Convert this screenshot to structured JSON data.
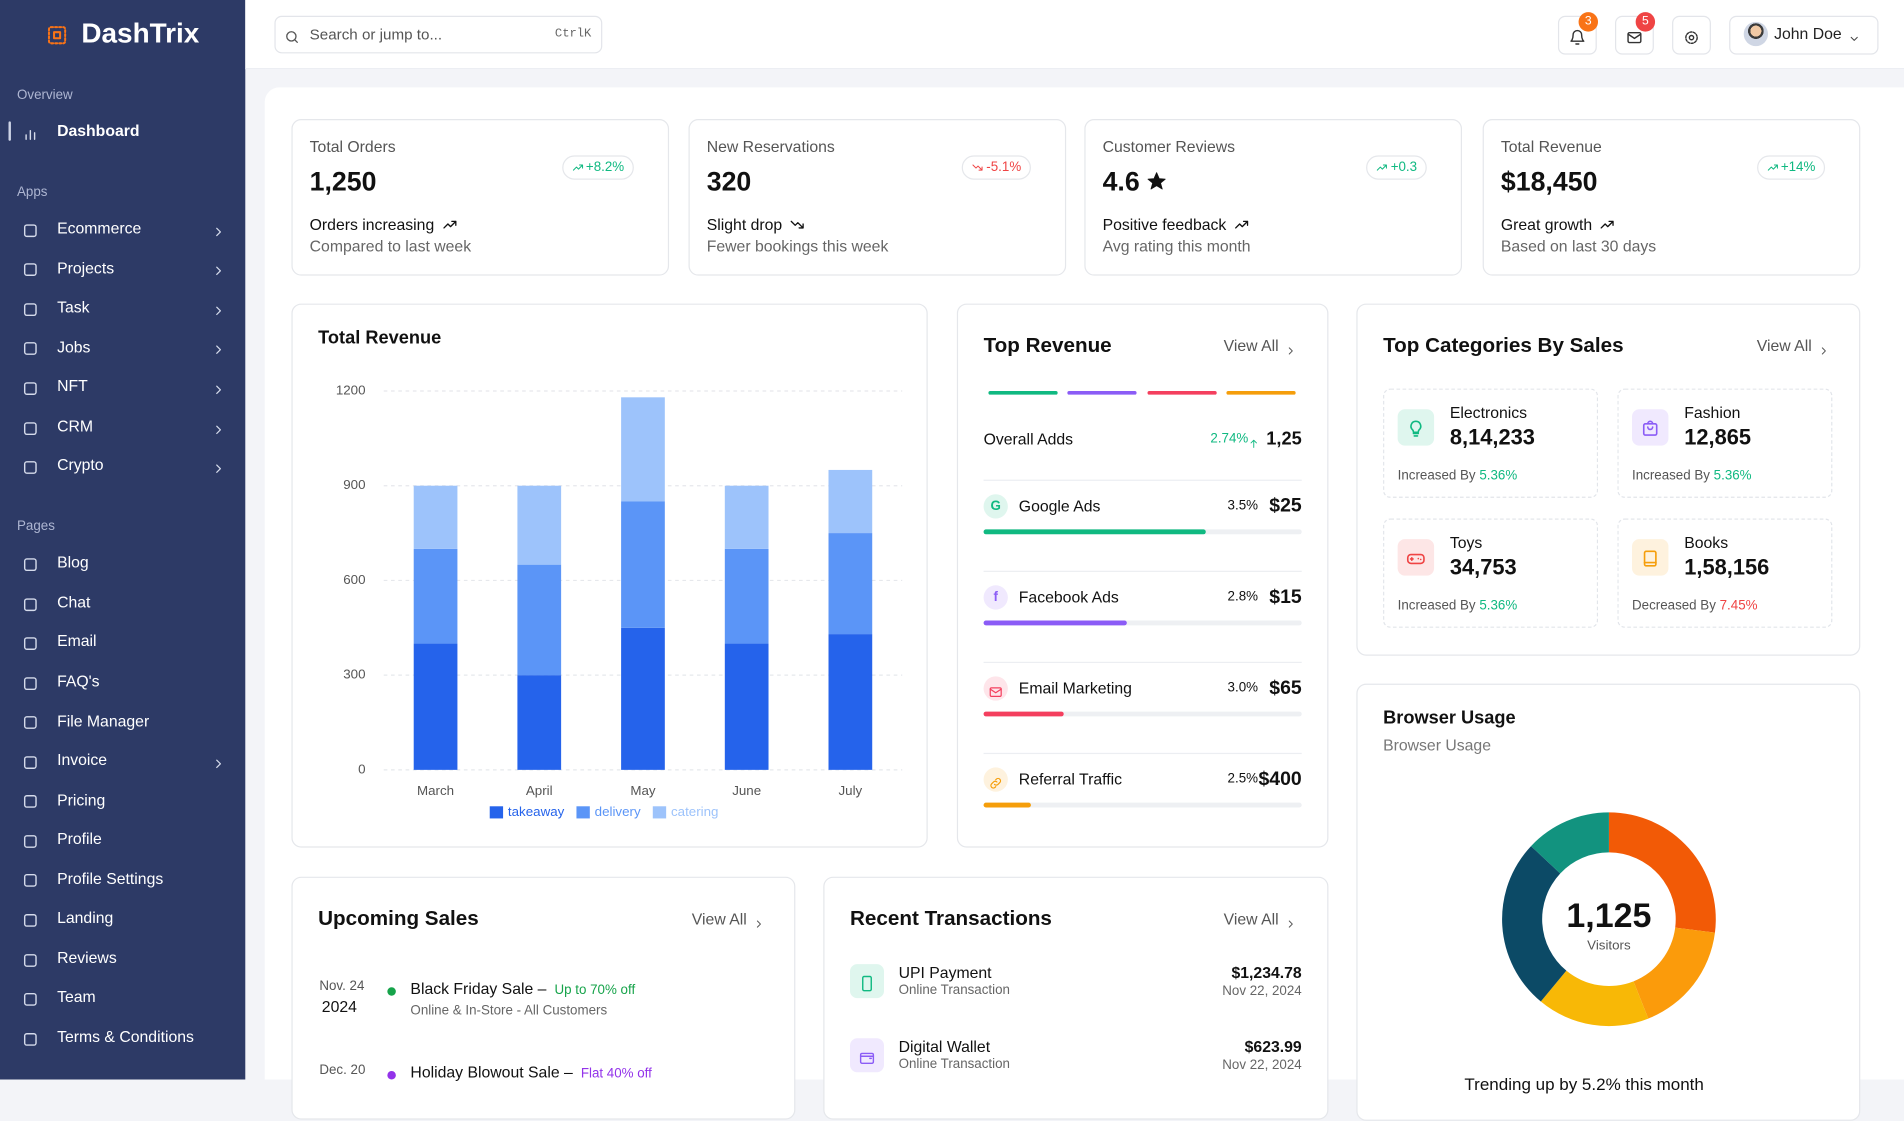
{
  "sidebar": {
    "brand": "DashTrix",
    "sections": [
      {
        "title": "Overview",
        "items": [
          {
            "label": "Dashboard",
            "active": true,
            "submenu": false
          }
        ]
      },
      {
        "title": "Apps",
        "items": [
          {
            "label": "Ecommerce",
            "submenu": true
          },
          {
            "label": "Projects",
            "submenu": true
          },
          {
            "label": "Task",
            "submenu": true
          },
          {
            "label": "Jobs",
            "submenu": true
          },
          {
            "label": "NFT",
            "submenu": true
          },
          {
            "label": "CRM",
            "submenu": true
          },
          {
            "label": "Crypto",
            "submenu": true
          }
        ]
      },
      {
        "title": "Pages",
        "items": [
          {
            "label": "Blog",
            "submenu": false
          },
          {
            "label": "Chat",
            "submenu": false
          },
          {
            "label": "Email",
            "submenu": false
          },
          {
            "label": "FAQ's",
            "submenu": false
          },
          {
            "label": "File Manager",
            "submenu": false
          },
          {
            "label": "Invoice",
            "submenu": true
          },
          {
            "label": "Pricing",
            "submenu": false
          },
          {
            "label": "Profile",
            "submenu": false
          },
          {
            "label": "Profile Settings",
            "submenu": false
          },
          {
            "label": "Landing",
            "submenu": false
          },
          {
            "label": "Reviews",
            "submenu": false
          },
          {
            "label": "Team",
            "submenu": false
          },
          {
            "label": "Terms & Conditions",
            "submenu": false
          }
        ]
      }
    ]
  },
  "topbar": {
    "search_placeholder": "Search or jump to...",
    "shortcut": "CtrlK",
    "notifications": 3,
    "messages": 5,
    "user": "John Doe"
  },
  "stats": [
    {
      "label": "Total Orders",
      "value": "1,250",
      "change": "+8.2%",
      "trend": "up",
      "note": "Orders increasing",
      "sub": "Compared to last week"
    },
    {
      "label": "New Reservations",
      "value": "320",
      "change": "-5.1%",
      "trend": "down",
      "note": "Slight drop",
      "sub": "Fewer bookings this week"
    },
    {
      "label": "Customer Reviews",
      "value": "4.6",
      "icon": "star",
      "change": "+0.3",
      "trend": "up",
      "note": "Positive feedback",
      "sub": "Avg rating this month"
    },
    {
      "label": "Total Revenue",
      "value": "$18,450",
      "change": "+14%",
      "trend": "up",
      "note": "Great growth",
      "sub": "Based on last 30 days"
    }
  ],
  "top_revenue": {
    "title": "Top Revenue",
    "link": "View All",
    "overall": {
      "label": "Overall Adds",
      "change": "2.74%",
      "value": "1,25"
    },
    "progress_lim": [
      0,
      100
    ],
    "rows": [
      {
        "name": "Google Ads",
        "icon": "G",
        "share": "3.5%",
        "value": "$25",
        "progress": 70,
        "color": "#10b981"
      },
      {
        "name": "Facebook Ads",
        "icon": "f",
        "share": "2.8%",
        "value": "$15",
        "progress": 45,
        "color": "#8b5cf6"
      },
      {
        "name": "Email Marketing",
        "share": "3.0%",
        "value": "$65",
        "progress": 25,
        "color": "#f43f5e"
      },
      {
        "name": "Referral Traffic",
        "share": "2.5%",
        "value": "$400",
        "progress": 15,
        "color": "#f59e0b"
      }
    ]
  },
  "top_categories": {
    "title": "Top Categories By Sales",
    "link": "View All",
    "items": [
      {
        "name": "Electronics",
        "value": "8,14,233",
        "trend_label": "Increased By",
        "change": "5.36%",
        "trend": "up",
        "color": "#10b981"
      },
      {
        "name": "Fashion",
        "value": "12,865",
        "trend_label": "Increased By",
        "change": "5.36%",
        "trend": "up",
        "color": "#8b5cf6"
      },
      {
        "name": "Toys",
        "value": "34,753",
        "trend_label": "Increased By",
        "change": "5.36%",
        "trend": "up",
        "color": "#ef4444"
      },
      {
        "name": "Books",
        "value": "1,58,156",
        "trend_label": "Decreased By",
        "change": "7.45%",
        "trend": "down",
        "color": "#f59e0b"
      }
    ]
  },
  "upcoming_sales": {
    "title": "Upcoming Sales",
    "link": "View All",
    "items": [
      {
        "date": "Nov. 24",
        "year": "2024",
        "name": "Black Friday Sale –",
        "offer": "Up to 70% off",
        "detail": "Online & In-Store - All Customers",
        "color": "#16a34a"
      },
      {
        "date": "Dec. 20",
        "name": "Holiday Blowout Sale –",
        "offer": "Flat 40% off",
        "color": "#9333ea"
      }
    ]
  },
  "recent_transactions": {
    "title": "Recent Transactions",
    "link": "View All",
    "items": [
      {
        "name": "UPI Payment",
        "type": "Online Transaction",
        "amount": "$1,234.78",
        "date": "Nov 22, 2024",
        "color": "#10b981"
      },
      {
        "name": "Digital Wallet",
        "type": "Online Transaction",
        "amount": "$623.99",
        "date": "Nov 22, 2024",
        "color": "#8b5cf6"
      }
    ]
  },
  "chart_data": [
    {
      "type": "bar",
      "stacked": true,
      "title": "Total Revenue",
      "categories": [
        "March",
        "April",
        "May",
        "June",
        "July"
      ],
      "series": [
        {
          "name": "takeaway",
          "color": "#2563eb",
          "values": [
            400,
            300,
            450,
            400,
            430
          ]
        },
        {
          "name": "delivery",
          "color": "#5b95f7",
          "values": [
            300,
            350,
            400,
            300,
            320
          ]
        },
        {
          "name": "catering",
          "color": "#9dc3fb",
          "values": [
            200,
            250,
            330,
            200,
            200
          ]
        }
      ],
      "ylim": [
        0,
        1200
      ],
      "yticks": [
        0,
        300,
        600,
        900,
        1200
      ],
      "grid": true,
      "legend": "bottom"
    },
    {
      "type": "donut",
      "title": "Browser Usage",
      "subtitle": "Browser Usage",
      "center_value": "1,125",
      "center_label": "Visitors",
      "values": [
        27,
        17,
        17,
        26,
        13
      ],
      "colors": [
        "#f25a06",
        "#fb9b0b",
        "#f8b806",
        "#0c4a66",
        "#12937f"
      ],
      "note": "Trending up by 5.2% this month"
    }
  ]
}
